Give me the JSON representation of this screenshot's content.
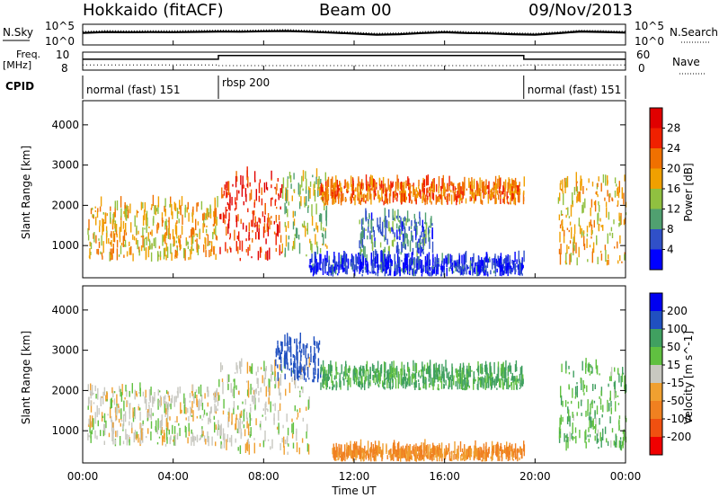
{
  "header": {
    "station": "Hokkaido (fitACF)",
    "beam": "Beam 00",
    "date": "09/Nov/2013"
  },
  "left_labels": {
    "nsky": "N.Sky",
    "freq": "Freq.",
    "freq_unit": "[MHz]",
    "cpid": "CPID"
  },
  "right_labels": {
    "nsearch": "N.Search",
    "nave": "Nave"
  },
  "cpid_segments": [
    {
      "label": "normal (fast) 151",
      "start_hour": 0,
      "end_hour": 6
    },
    {
      "label": "rbsp 200",
      "start_hour": 6,
      "end_hour": 19.5
    },
    {
      "label": "normal (fast) 151",
      "start_hour": 19.5,
      "end_hour": 24
    }
  ],
  "colors": {
    "power_scale": [
      "#0000ff",
      "#3050c8",
      "#50a070",
      "#90c040",
      "#f0a000",
      "#f07000",
      "#f02000",
      "#e00000"
    ],
    "velocity_scale": [
      "#f00000",
      "#f05010",
      "#f08020",
      "#f0a030",
      "#c8c8c0",
      "#60c040",
      "#40a060",
      "#2050c0",
      "#0000f0"
    ],
    "ground_scatter": "#c8c8c0"
  },
  "chart_data": [
    {
      "type": "line",
      "panel": "noise",
      "ylabel_left": "N.Sky",
      "ylabel_right": "N.Search",
      "ytick_labels_left": [
        "10^5",
        "10^0"
      ],
      "ytick_labels_right": [
        "10^5",
        "10^0"
      ],
      "x": [
        0,
        1,
        2,
        3,
        4,
        5,
        6,
        7,
        8,
        9,
        10,
        11,
        12,
        13,
        14,
        15,
        16,
        17,
        18,
        19,
        20,
        21,
        22,
        23,
        24
      ],
      "series": [
        {
          "values": [
            1000,
            1800,
            1500,
            1700,
            1600,
            2000,
            2500,
            2200,
            3000,
            3500,
            2200,
            1200,
            600,
            300,
            400,
            900,
            1500,
            900,
            700,
            400,
            300,
            800,
            2500,
            1800,
            1200
          ]
        }
      ]
    },
    {
      "type": "line",
      "panel": "freq",
      "ylabel_left": "Freq. [MHz]",
      "ylabel_right": "Nave",
      "ytick_labels_left": [
        "10",
        "8"
      ],
      "ytick_labels_right": [
        "60",
        "0"
      ],
      "x": [
        0,
        6,
        6,
        19.5,
        19.5,
        24
      ],
      "series": [
        {
          "values": [
            9.3,
            9.3,
            9.8,
            9.8,
            9.3,
            9.3
          ]
        },
        {
          "values": [
            17,
            17,
            14,
            14,
            17,
            17
          ]
        }
      ]
    },
    {
      "type": "heatmap",
      "panel": "power",
      "ylabel": "Slant Range [km]",
      "colorbar_label": "Power [dB]",
      "colorbar_ticks": [
        "28",
        "24",
        "20",
        "16",
        "12",
        "8",
        "4"
      ],
      "colorbar_range": [
        0,
        32
      ],
      "ylim": [
        200,
        4600
      ],
      "yticks": [
        "1000",
        "2000",
        "3000",
        "4000"
      ],
      "xlim": [
        0,
        24
      ],
      "regions": [
        {
          "x0": 0.2,
          "x1": 6,
          "y0": 600,
          "y1": 2000,
          "power": 18
        },
        {
          "x0": 6,
          "x1": 8.8,
          "y0": 600,
          "y1": 2700,
          "power": 26
        },
        {
          "x0": 8.8,
          "x1": 10.8,
          "y0": 700,
          "y1": 2700,
          "power": 14
        },
        {
          "x0": 10.5,
          "x1": 19.5,
          "y0": 2000,
          "y1": 2500,
          "power": 22
        },
        {
          "x0": 12.2,
          "x1": 15.5,
          "y0": 700,
          "y1": 1700,
          "power": 8
        },
        {
          "x0": 10,
          "x1": 19.5,
          "y0": 230,
          "y1": 600,
          "power": 4
        },
        {
          "x0": 21,
          "x1": 24,
          "y0": 500,
          "y1": 2600,
          "power": 18
        }
      ]
    },
    {
      "type": "heatmap",
      "panel": "velocity",
      "ylabel": "Slant Range [km]",
      "colorbar_label": "Velocity [m s^-1]",
      "colorbar_ticks": [
        "200",
        "100",
        "50",
        "15",
        "-15",
        "-50",
        "-100",
        "-200"
      ],
      "colorbar_range": [
        -250,
        250
      ],
      "ylim": [
        200,
        4600
      ],
      "yticks": [
        "1000",
        "2000",
        "3000",
        "4000"
      ],
      "xlim": [
        0,
        24
      ],
      "xticks": [
        "00:00",
        "04:00",
        "08:00",
        "12:00",
        "16:00",
        "20:00",
        "00:00"
      ],
      "xlabel": "Time UT",
      "regions": [
        {
          "x0": 0.2,
          "x1": 6,
          "y0": 600,
          "y1": 2000,
          "velocity": 0
        },
        {
          "x0": 6,
          "x1": 10,
          "y0": 400,
          "y1": 2600,
          "velocity": 0
        },
        {
          "x0": 8.5,
          "x1": 10.5,
          "y0": 2200,
          "y1": 3200,
          "velocity": 150
        },
        {
          "x0": 10.5,
          "x1": 19.5,
          "y0": 2000,
          "y1": 2500,
          "velocity": 60
        },
        {
          "x0": 11,
          "x1": 19.5,
          "y0": 230,
          "y1": 500,
          "velocity": -60
        },
        {
          "x0": 21,
          "x1": 24,
          "y0": 500,
          "y1": 2600,
          "velocity": 40
        }
      ]
    }
  ]
}
